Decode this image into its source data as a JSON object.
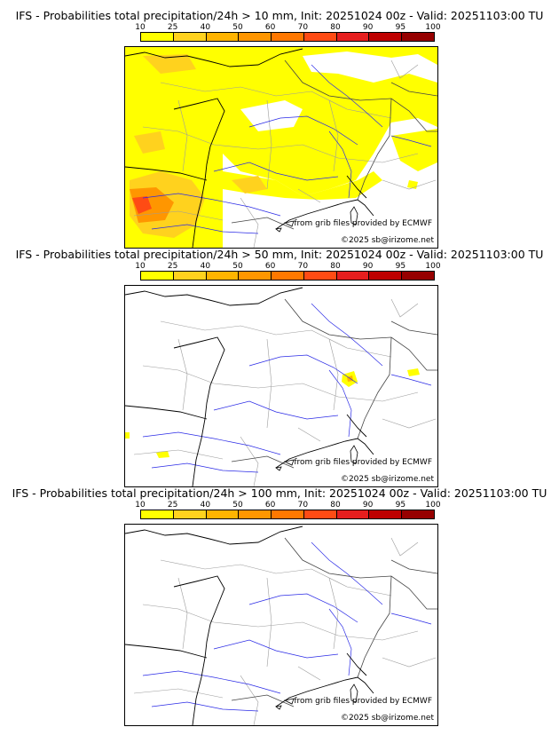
{
  "colorbar": {
    "ticks": [
      "10",
      "25",
      "40",
      "50",
      "60",
      "70",
      "80",
      "90",
      "95",
      "100"
    ],
    "colors": [
      "#ffff00",
      "#ffd21e",
      "#ffb400",
      "#ff9600",
      "#ff7800",
      "#ff4b14",
      "#e61e1e",
      "#be0000",
      "#960000",
      "#6e0000"
    ]
  },
  "panels": [
    {
      "title": "IFS - Probabilities total precipitation/24h > 10 mm, Init: 20251024 00z - Valid: 20251103:00 TU",
      "source_credit": "from grib files provided by ECMWF",
      "copyright": "©2025 sb@irizome.net",
      "shading": "extensive"
    },
    {
      "title": "IFS - Probabilities total precipitation/24h > 50 mm, Init: 20251024 00z - Valid: 20251103:00 TU",
      "source_credit": "from grib files provided by ECMWF",
      "copyright": "©2025 sb@irizome.net",
      "shading": "sparse"
    },
    {
      "title": "IFS - Probabilities total precipitation/24h > 100 mm, Init: 20251024 00z - Valid: 20251103:00 TU",
      "source_credit": "from grib files provided by ECMWF",
      "copyright": "©2025 sb@irizome.net",
      "shading": "none"
    }
  ]
}
